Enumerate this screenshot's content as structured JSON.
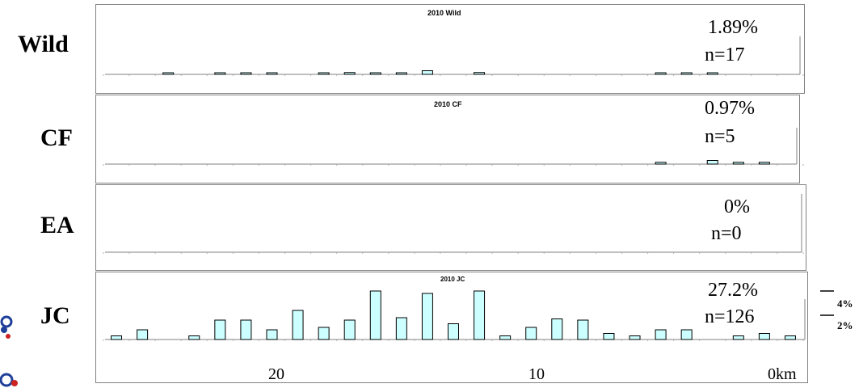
{
  "chart_data": [
    {
      "type": "bar",
      "row_label": "Wild",
      "title": "2010 Wild",
      "percent_text": "1.89%",
      "n_text": "n=17",
      "x": [
        26.5,
        25.5,
        24.5,
        23.5,
        22.5,
        21.5,
        20.5,
        19.5,
        18.5,
        17.5,
        16.5,
        15.5,
        14.5,
        13.5,
        12.5,
        11.5,
        10.5,
        9.5,
        8.5,
        7.5,
        6.5,
        5.5,
        4.5,
        3.5,
        2.5,
        1.5,
        0.5
      ],
      "values": [
        0,
        0,
        0.1,
        0,
        0.1,
        0.1,
        0.1,
        0,
        0.1,
        0.15,
        0.1,
        0.1,
        0.3,
        0,
        0.15,
        0,
        0,
        0,
        0,
        0,
        0,
        0.1,
        0.1,
        0.1,
        0,
        0,
        0
      ]
    },
    {
      "type": "bar",
      "row_label": "CF",
      "title": "2010 CF",
      "percent_text": "0.97%",
      "n_text": "n=5",
      "x": [
        26.5,
        25.5,
        24.5,
        23.5,
        22.5,
        21.5,
        20.5,
        19.5,
        18.5,
        17.5,
        16.5,
        15.5,
        14.5,
        13.5,
        12.5,
        11.5,
        10.5,
        9.5,
        8.5,
        7.5,
        6.5,
        5.5,
        4.5,
        3.5,
        2.5,
        1.5,
        0.5
      ],
      "values": [
        0,
        0,
        0,
        0,
        0,
        0,
        0,
        0,
        0,
        0,
        0,
        0,
        0,
        0,
        0,
        0,
        0,
        0,
        0,
        0,
        0,
        0.15,
        0,
        0.3,
        0.15,
        0.15,
        0
      ]
    },
    {
      "type": "bar",
      "row_label": "EA",
      "title": "",
      "percent_text": "0%",
      "n_text": "n=0",
      "x": [],
      "values": []
    },
    {
      "type": "bar",
      "row_label": "JC",
      "title": "2010 JC",
      "percent_text": "27.2%",
      "n_text": "n=126",
      "x": [
        26.5,
        25.5,
        24.5,
        23.5,
        22.5,
        21.5,
        20.5,
        19.5,
        18.5,
        17.5,
        16.5,
        15.5,
        14.5,
        13.5,
        12.5,
        11.5,
        10.5,
        9.5,
        8.5,
        7.5,
        6.5,
        5.5,
        4.5,
        3.5,
        2.5,
        1.5,
        0.5
      ],
      "values": [
        0.3,
        0.8,
        0,
        0.3,
        1.6,
        1.6,
        0.8,
        2.4,
        1.0,
        1.6,
        4.0,
        1.8,
        3.8,
        1.3,
        4.0,
        0.3,
        1.0,
        1.7,
        1.6,
        0.5,
        0.3,
        0.8,
        0.8,
        0,
        0.3,
        0.5,
        0.3
      ]
    }
  ],
  "x_axis": {
    "tick_labels": [
      {
        "value": 20,
        "label": "20"
      },
      {
        "value": 10,
        "label": "10"
      },
      {
        "value": 0,
        "label": "0km"
      }
    ],
    "xlim": [
      27,
      0
    ]
  },
  "y_axis": {
    "ylim": [
      0,
      4
    ],
    "scale_labels": [
      {
        "value": 4,
        "label": "4%"
      },
      {
        "value": 2,
        "label": "2%"
      }
    ]
  },
  "colors": {
    "bar_fill": "#ccffff",
    "bar_stroke": "#000000",
    "frame": "#808080",
    "axis": "#808080"
  }
}
